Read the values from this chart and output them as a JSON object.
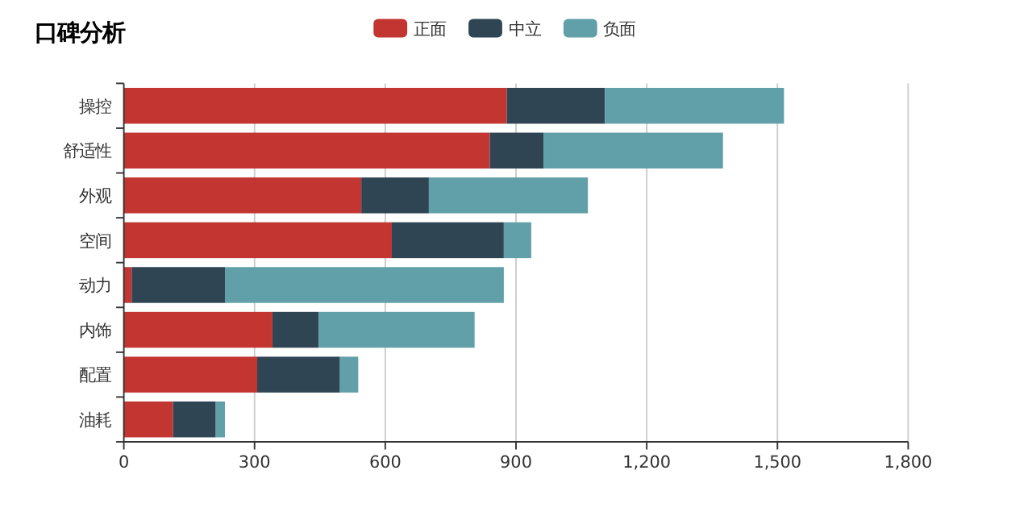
{
  "chart_data": {
    "type": "bar",
    "title": "口碑分析",
    "orientation": "horizontal",
    "stacked": true,
    "legend": "top",
    "grid": "x",
    "categories": [
      "操控",
      "舒适性",
      "外观",
      "空间",
      "动力",
      "内饰",
      "配置",
      "油耗"
    ],
    "series": [
      {
        "name": "正面",
        "color": "#c23531",
        "values": [
          879,
          840,
          545,
          615,
          18,
          341,
          306,
          113
        ]
      },
      {
        "name": "中立",
        "color": "#2f4554",
        "values": [
          225,
          123,
          155,
          257,
          214,
          106,
          190,
          98
        ]
      },
      {
        "name": "负面",
        "color": "#61a0a8",
        "values": [
          411,
          412,
          365,
          63,
          640,
          358,
          42,
          21
        ]
      }
    ],
    "xlim": [
      0,
      1800
    ],
    "xticks": [
      0,
      300,
      600,
      900,
      {
        "value": 1200,
        "label": "1,200"
      },
      {
        "value": 1500,
        "label": "1,500"
      },
      {
        "value": 1800,
        "label": "1,800"
      }
    ]
  }
}
